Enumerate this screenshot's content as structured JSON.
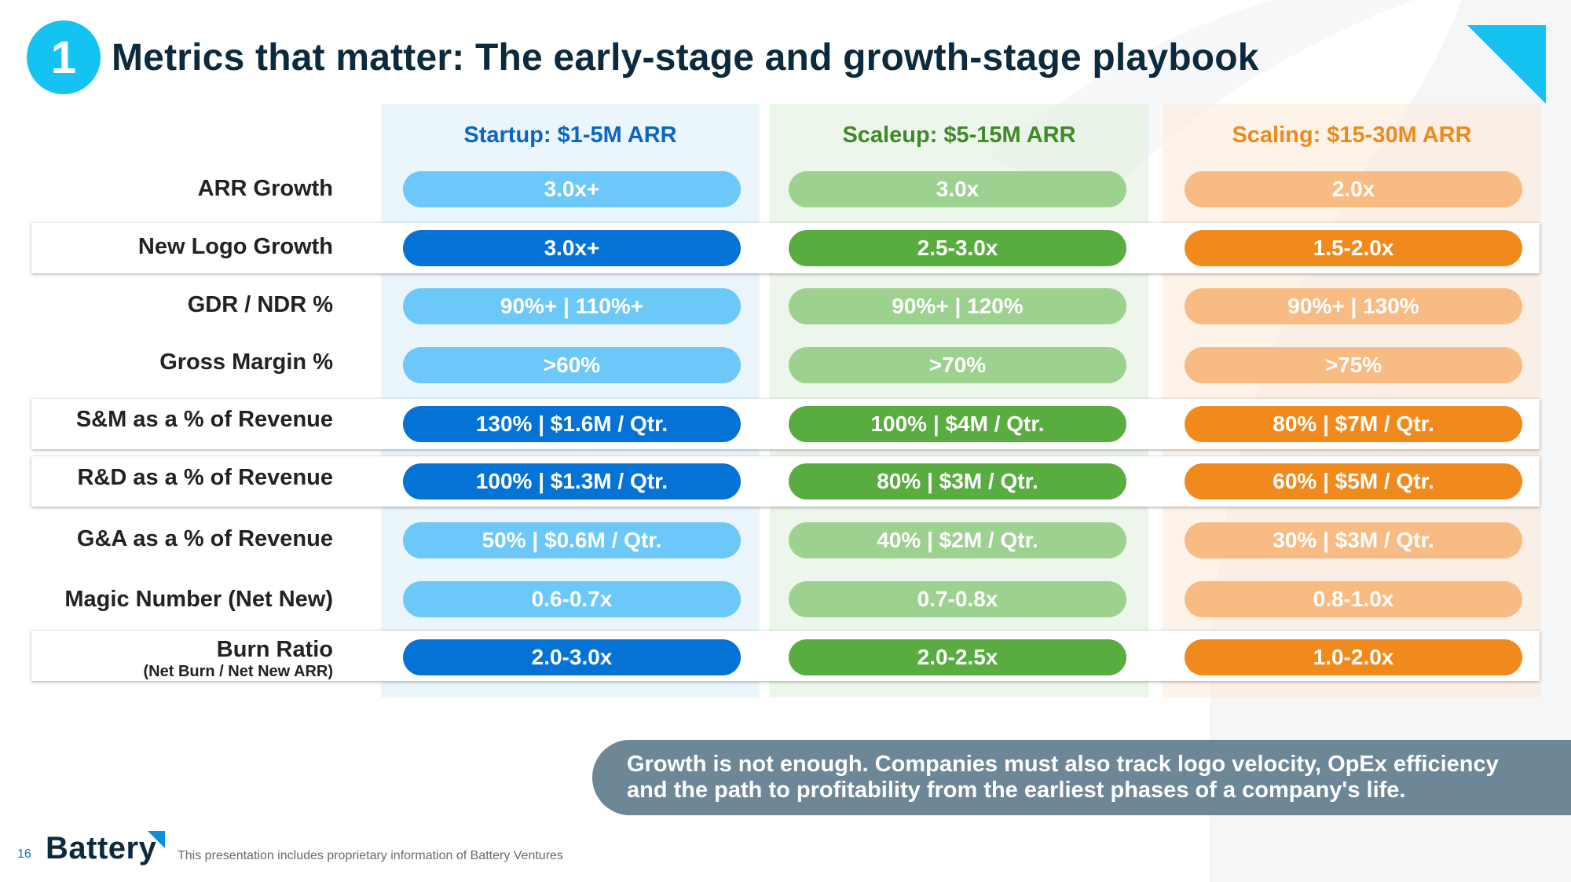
{
  "slide": {
    "number": "1",
    "title": "Metrics that matter: The early-stage and growth-stage playbook"
  },
  "columns": [
    {
      "label": "Startup: $1-5M ARR",
      "color": "#0a66c2"
    },
    {
      "label": "Scaleup: $5-15M ARR",
      "color": "#3e8a2a"
    },
    {
      "label": "Scaling: $15-30M ARR",
      "color": "#ee8a1c"
    }
  ],
  "rows": [
    {
      "label": "ARR Growth",
      "sublabel": "",
      "highlighted": false,
      "values": [
        "3.0x+",
        "3.0x",
        "2.0x"
      ]
    },
    {
      "label": "New Logo Growth",
      "sublabel": "",
      "highlighted": true,
      "values": [
        "3.0x+",
        "2.5-3.0x",
        "1.5-2.0x"
      ]
    },
    {
      "label": "GDR / NDR %",
      "sublabel": "",
      "highlighted": false,
      "values": [
        "90%+ | 110%+",
        "90%+ | 120%",
        "90%+ | 130%"
      ]
    },
    {
      "label": "Gross Margin %",
      "sublabel": "",
      "highlighted": false,
      "values": [
        ">60%",
        ">70%",
        ">75%"
      ]
    },
    {
      "label": "S&M as a % of Revenue",
      "sublabel": "",
      "highlighted": true,
      "values": [
        "130% | $1.6M / Qtr.",
        "100% | $4M / Qtr.",
        "80% | $7M / Qtr."
      ]
    },
    {
      "label": "R&D as a % of Revenue",
      "sublabel": "",
      "highlighted": true,
      "values": [
        "100% | $1.3M / Qtr.",
        "80% | $3M / Qtr.",
        "60% | $5M / Qtr."
      ]
    },
    {
      "label": "G&A as a % of Revenue",
      "sublabel": "",
      "highlighted": false,
      "values": [
        "50% | $0.6M / Qtr.",
        "40% | $2M / Qtr.",
        "30% | $3M / Qtr."
      ]
    },
    {
      "label": "Magic Number (Net New)",
      "sublabel": "",
      "highlighted": false,
      "values": [
        "0.6-0.7x",
        "0.7-0.8x",
        "0.8-1.0x"
      ]
    },
    {
      "label": "Burn Ratio",
      "sublabel": "(Net Burn / Net New ARR)",
      "highlighted": true,
      "values": [
        "2.0-3.0x",
        "2.0-2.5x",
        "1.0-2.0x"
      ]
    }
  ],
  "callout": {
    "line1": "Growth is not enough. Companies must also track logo velocity, OpEx efficiency",
    "line2": "and the path to profitability from the earliest phases of a company's life."
  },
  "footer": {
    "page_number": "16",
    "logo_text": "Battery",
    "note": "This presentation includes proprietary information of Battery Ventures"
  },
  "colors": {
    "accent_cyan": "#15c3f2",
    "title_navy": "#0b2a3e",
    "blue_dark": "#0573d6",
    "blue_light": "#6cc8f8",
    "green_dark": "#58ac40",
    "green_light": "#9dd18f",
    "orange_dark": "#f18a1d",
    "orange_light": "#f9bb84",
    "callout_bg": "#6e8797"
  }
}
